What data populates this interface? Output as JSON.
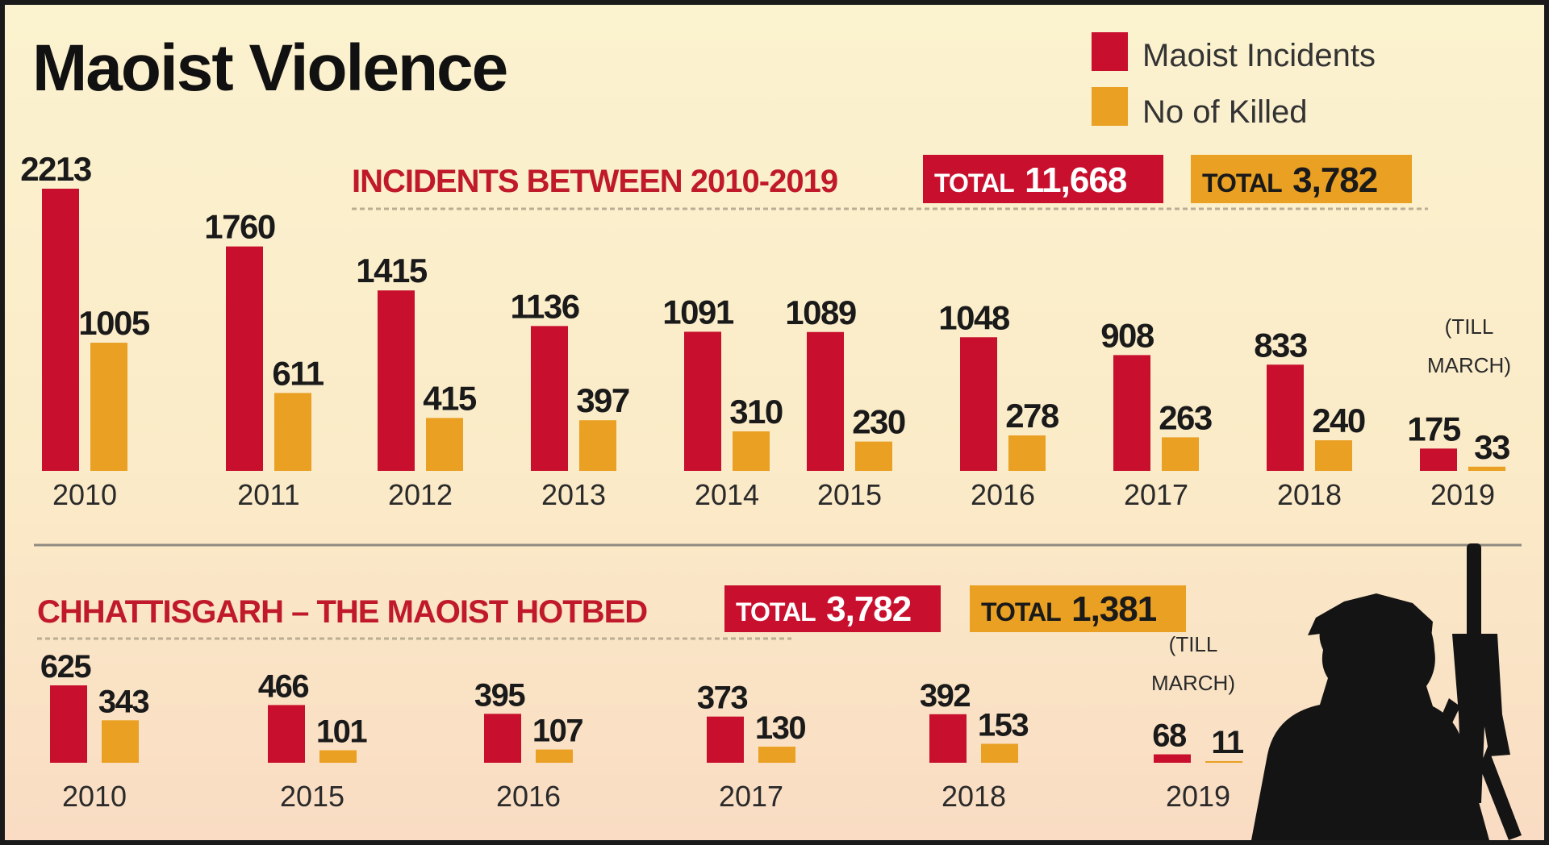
{
  "title": "Maoist Violence",
  "legend": [
    {
      "label": "Maoist Incidents",
      "color": "#c8102e"
    },
    {
      "label": "No of Killed",
      "color": "#e9a023"
    }
  ],
  "chart_data": [
    {
      "type": "bar",
      "title": "INCIDENTS BETWEEN 2010-2019",
      "totals": [
        {
          "label": "TOTAL",
          "value": "11,668",
          "series": "Maoist Incidents"
        },
        {
          "label": "TOTAL",
          "value": "3,782",
          "series": "No of Killed"
        }
      ],
      "categories": [
        "2010",
        "2011",
        "2012",
        "2013",
        "2014",
        "2015",
        "2016",
        "2017",
        "2018",
        "2019"
      ],
      "series": [
        {
          "name": "Maoist Incidents",
          "values": [
            2213,
            1760,
            1415,
            1136,
            1091,
            1089,
            1048,
            908,
            833,
            175
          ]
        },
        {
          "name": "No of Killed",
          "values": [
            1005,
            611,
            415,
            397,
            310,
            230,
            278,
            263,
            240,
            33
          ]
        }
      ],
      "note": {
        "line1": "(TILL",
        "line2": "MARCH)"
      },
      "ylim": [
        0,
        2213
      ],
      "grid": false
    },
    {
      "type": "bar",
      "title": "CHHATTISGARH – THE MAOIST HOTBED",
      "totals": [
        {
          "label": "TOTAL",
          "value": "3,782",
          "series": "Maoist Incidents"
        },
        {
          "label": "TOTAL",
          "value": "1,381",
          "series": "No of Killed"
        }
      ],
      "categories": [
        "2010",
        "2015",
        "2016",
        "2017",
        "2018",
        "2019"
      ],
      "series": [
        {
          "name": "Maoist Incidents",
          "values": [
            625,
            466,
            395,
            373,
            392,
            68
          ]
        },
        {
          "name": "No of Killed",
          "values": [
            343,
            101,
            107,
            130,
            153,
            11
          ]
        }
      ],
      "note": {
        "line1": "(TILL",
        "line2": "MARCH)"
      },
      "ylim": [
        0,
        625
      ],
      "grid": false
    }
  ]
}
